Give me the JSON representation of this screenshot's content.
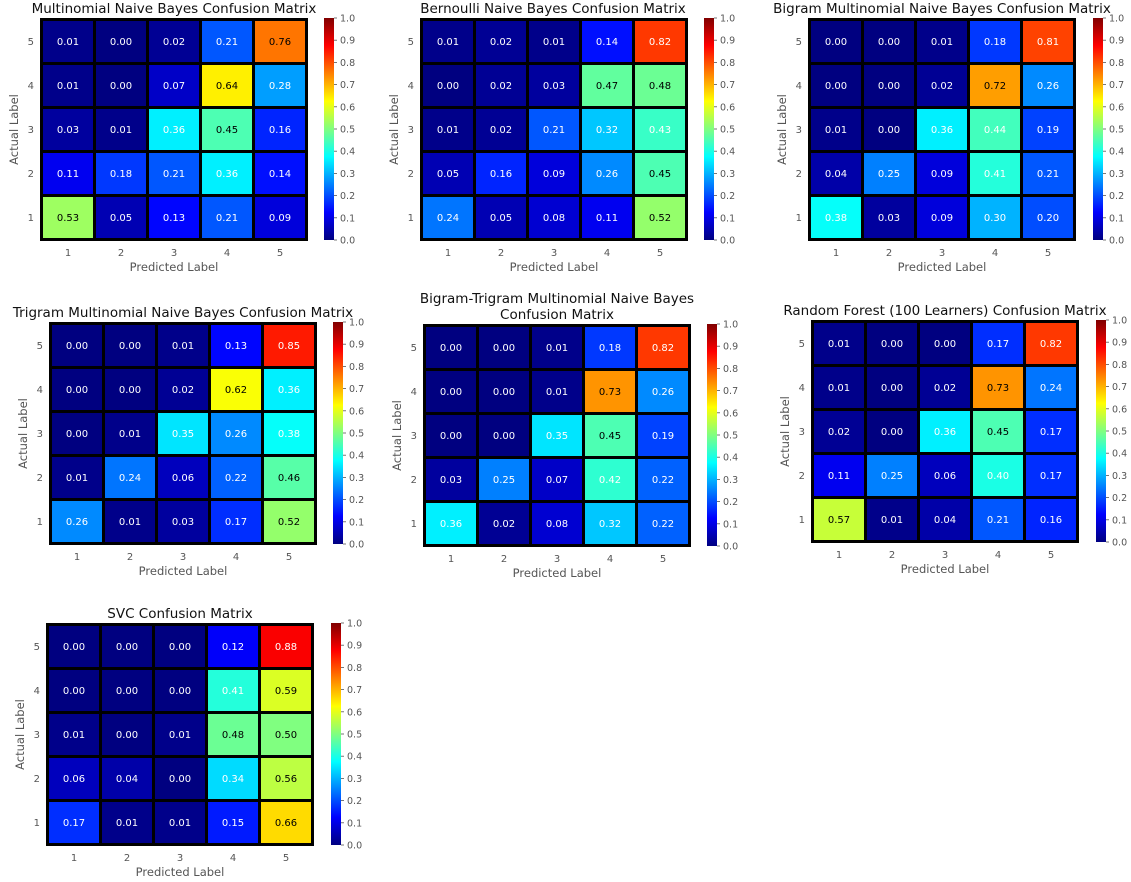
{
  "chart_data": [
    {
      "type": "heatmap",
      "title": [
        "Multinomial Naive Bayes Confusion Matrix"
      ],
      "xlabel": "Predicted Label",
      "ylabel": "Actual Label",
      "x_ticks": [
        "1",
        "2",
        "3",
        "4",
        "5"
      ],
      "y_ticks": [
        "5",
        "4",
        "3",
        "2",
        "1"
      ],
      "cells": [
        [
          "0.01",
          "0.00",
          "0.02",
          "0.21",
          "0.76"
        ],
        [
          "0.01",
          "0.00",
          "0.07",
          "0.64",
          "0.28"
        ],
        [
          "0.03",
          "0.01",
          "0.36",
          "0.45",
          "0.16"
        ],
        [
          "0.11",
          "0.18",
          "0.21",
          "0.36",
          "0.14"
        ],
        [
          "0.53",
          "0.05",
          "0.13",
          "0.21",
          "0.09"
        ]
      ],
      "colorbar": {
        "range": [
          0,
          1
        ],
        "ticks": [
          "0.0",
          "0.1",
          "0.2",
          "0.3",
          "0.4",
          "0.5",
          "0.6",
          "0.7",
          "0.8",
          "0.9",
          "1.0"
        ],
        "colormap": "jet"
      }
    },
    {
      "type": "heatmap",
      "title": [
        "Bernoulli Naive Bayes Confusion Matrix"
      ],
      "xlabel": "Predicted Label",
      "ylabel": "Actual Label",
      "x_ticks": [
        "1",
        "2",
        "3",
        "4",
        "5"
      ],
      "y_ticks": [
        "5",
        "4",
        "3",
        "2",
        "1"
      ],
      "cells": [
        [
          "0.01",
          "0.02",
          "0.01",
          "0.14",
          "0.82"
        ],
        [
          "0.00",
          "0.02",
          "0.03",
          "0.47",
          "0.48"
        ],
        [
          "0.01",
          "0.02",
          "0.21",
          "0.32",
          "0.43"
        ],
        [
          "0.05",
          "0.16",
          "0.09",
          "0.26",
          "0.45"
        ],
        [
          "0.24",
          "0.05",
          "0.08",
          "0.11",
          "0.52"
        ]
      ],
      "colorbar": {
        "range": [
          0,
          1
        ],
        "ticks": [
          "0.0",
          "0.1",
          "0.2",
          "0.3",
          "0.4",
          "0.5",
          "0.6",
          "0.7",
          "0.8",
          "0.9",
          "1.0"
        ],
        "colormap": "jet"
      }
    },
    {
      "type": "heatmap",
      "title": [
        "Bigram Multinomial Naive Bayes Confusion Matrix"
      ],
      "xlabel": "Predicted Label",
      "ylabel": "Actual Label",
      "x_ticks": [
        "1",
        "2",
        "3",
        "4",
        "5"
      ],
      "y_ticks": [
        "5",
        "4",
        "3",
        "2",
        "1"
      ],
      "cells": [
        [
          "0.00",
          "0.00",
          "0.01",
          "0.18",
          "0.81"
        ],
        [
          "0.00",
          "0.00",
          "0.02",
          "0.72",
          "0.26"
        ],
        [
          "0.01",
          "0.00",
          "0.36",
          "0.44",
          "0.19"
        ],
        [
          "0.04",
          "0.25",
          "0.09",
          "0.41",
          "0.21"
        ],
        [
          "0.38",
          "0.03",
          "0.09",
          "0.30",
          "0.20"
        ]
      ],
      "colorbar": {
        "range": [
          0,
          1
        ],
        "ticks": [
          "0.0",
          "0.1",
          "0.2",
          "0.3",
          "0.4",
          "0.5",
          "0.6",
          "0.7",
          "0.8",
          "0.9",
          "1.0"
        ],
        "colormap": "jet"
      }
    },
    {
      "type": "heatmap",
      "title": [
        "Trigram Multinomial Naive Bayes Confusion Matrix"
      ],
      "xlabel": "Predicted Label",
      "ylabel": "Actual Label",
      "x_ticks": [
        "1",
        "2",
        "3",
        "4",
        "5"
      ],
      "y_ticks": [
        "5",
        "4",
        "3",
        "2",
        "1"
      ],
      "cells": [
        [
          "0.00",
          "0.00",
          "0.01",
          "0.13",
          "0.85"
        ],
        [
          "0.00",
          "0.00",
          "0.02",
          "0.62",
          "0.36"
        ],
        [
          "0.00",
          "0.01",
          "0.35",
          "0.26",
          "0.38"
        ],
        [
          "0.01",
          "0.24",
          "0.06",
          "0.22",
          "0.46"
        ],
        [
          "0.26",
          "0.01",
          "0.03",
          "0.17",
          "0.52"
        ]
      ],
      "colorbar": {
        "range": [
          0,
          1
        ],
        "ticks": [
          "0.0",
          "0.1",
          "0.2",
          "0.3",
          "0.4",
          "0.5",
          "0.6",
          "0.7",
          "0.8",
          "0.9",
          "1.0"
        ],
        "colormap": "jet"
      }
    },
    {
      "type": "heatmap",
      "title": [
        "Bigram-Trigram Multinomial Naive Bayes",
        "Confusion Matrix"
      ],
      "xlabel": "Predicted Label",
      "ylabel": "Actual Label",
      "x_ticks": [
        "1",
        "2",
        "3",
        "4",
        "5"
      ],
      "y_ticks": [
        "5",
        "4",
        "3",
        "2",
        "1"
      ],
      "cells": [
        [
          "0.00",
          "0.00",
          "0.01",
          "0.18",
          "0.82"
        ],
        [
          "0.00",
          "0.00",
          "0.01",
          "0.73",
          "0.26"
        ],
        [
          "0.00",
          "0.00",
          "0.35",
          "0.45",
          "0.19"
        ],
        [
          "0.03",
          "0.25",
          "0.07",
          "0.42",
          "0.22"
        ],
        [
          "0.36",
          "0.02",
          "0.08",
          "0.32",
          "0.22"
        ]
      ],
      "colorbar": {
        "range": [
          0,
          1
        ],
        "ticks": [
          "0.0",
          "0.1",
          "0.2",
          "0.3",
          "0.4",
          "0.5",
          "0.6",
          "0.7",
          "0.8",
          "0.9",
          "1.0"
        ],
        "colormap": "jet"
      }
    },
    {
      "type": "heatmap",
      "title": [
        "Random Forest (100 Learners) Confusion Matrix"
      ],
      "xlabel": "Predicted Label",
      "ylabel": "Actual Label",
      "x_ticks": [
        "1",
        "2",
        "3",
        "4",
        "5"
      ],
      "y_ticks": [
        "5",
        "4",
        "3",
        "2",
        "1"
      ],
      "cells": [
        [
          "0.01",
          "0.00",
          "0.00",
          "0.17",
          "0.82"
        ],
        [
          "0.01",
          "0.00",
          "0.02",
          "0.73",
          "0.24"
        ],
        [
          "0.02",
          "0.00",
          "0.36",
          "0.45",
          "0.17"
        ],
        [
          "0.11",
          "0.25",
          "0.06",
          "0.40",
          "0.17"
        ],
        [
          "0.57",
          "0.01",
          "0.04",
          "0.21",
          "0.16"
        ]
      ],
      "colorbar": {
        "range": [
          0,
          1
        ],
        "ticks": [
          "0.0",
          "0.1",
          "0.2",
          "0.3",
          "0.4",
          "0.5",
          "0.6",
          "0.7",
          "0.8",
          "0.9",
          "1.0"
        ],
        "colormap": "jet"
      }
    },
    {
      "type": "heatmap",
      "title": [
        "SVC Confusion Matrix"
      ],
      "xlabel": "Predicted Label",
      "ylabel": "Actual Label",
      "x_ticks": [
        "1",
        "2",
        "3",
        "4",
        "5"
      ],
      "y_ticks": [
        "5",
        "4",
        "3",
        "2",
        "1"
      ],
      "cells": [
        [
          "0.00",
          "0.00",
          "0.00",
          "0.12",
          "0.88"
        ],
        [
          "0.00",
          "0.00",
          "0.00",
          "0.41",
          "0.59"
        ],
        [
          "0.01",
          "0.00",
          "0.01",
          "0.48",
          "0.50"
        ],
        [
          "0.06",
          "0.04",
          "0.00",
          "0.34",
          "0.56"
        ],
        [
          "0.17",
          "0.01",
          "0.01",
          "0.15",
          "0.66"
        ]
      ],
      "colorbar": {
        "range": [
          0,
          1
        ],
        "ticks": [
          "0.0",
          "0.1",
          "0.2",
          "0.3",
          "0.4",
          "0.5",
          "0.6",
          "0.7",
          "0.8",
          "0.9",
          "1.0"
        ],
        "colormap": "jet"
      }
    }
  ]
}
